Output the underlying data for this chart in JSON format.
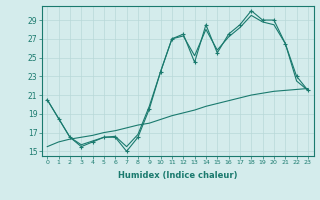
{
  "title": "",
  "xlabel": "Humidex (Indice chaleur)",
  "ylabel": "",
  "x": [
    0,
    1,
    2,
    3,
    4,
    5,
    6,
    7,
    8,
    9,
    10,
    11,
    12,
    13,
    14,
    15,
    16,
    17,
    18,
    19,
    20,
    21,
    22,
    23
  ],
  "line_marked": [
    20.5,
    18.5,
    16.5,
    15.5,
    16.0,
    16.5,
    16.5,
    15.0,
    16.5,
    19.5,
    23.5,
    27.0,
    27.5,
    24.5,
    28.5,
    25.5,
    27.5,
    28.5,
    30.0,
    29.0,
    29.0,
    26.5,
    23.0,
    21.5
  ],
  "line_smooth": [
    20.5,
    18.5,
    16.5,
    15.7,
    16.1,
    16.5,
    16.6,
    15.5,
    16.8,
    19.8,
    23.5,
    27.0,
    27.3,
    25.2,
    28.0,
    25.8,
    27.2,
    28.2,
    29.5,
    28.8,
    28.5,
    26.5,
    22.5,
    21.5
  ],
  "line_linear": [
    15.5,
    16.0,
    16.3,
    16.5,
    16.7,
    17.0,
    17.2,
    17.5,
    17.8,
    18.0,
    18.4,
    18.8,
    19.1,
    19.4,
    19.8,
    20.1,
    20.4,
    20.7,
    21.0,
    21.2,
    21.4,
    21.5,
    21.6,
    21.7
  ],
  "ylim": [
    14.5,
    30.5
  ],
  "xlim": [
    -0.5,
    23.5
  ],
  "yticks": [
    15,
    17,
    19,
    21,
    23,
    25,
    27,
    29
  ],
  "xticks": [
    0,
    1,
    2,
    3,
    4,
    5,
    6,
    7,
    8,
    9,
    10,
    11,
    12,
    13,
    14,
    15,
    16,
    17,
    18,
    19,
    20,
    21,
    22,
    23
  ],
  "color_main": "#1a7a6e",
  "color_bg": "#d4ecec",
  "color_grid": "#b8d8d8",
  "color_axis": "#1a7a6e"
}
